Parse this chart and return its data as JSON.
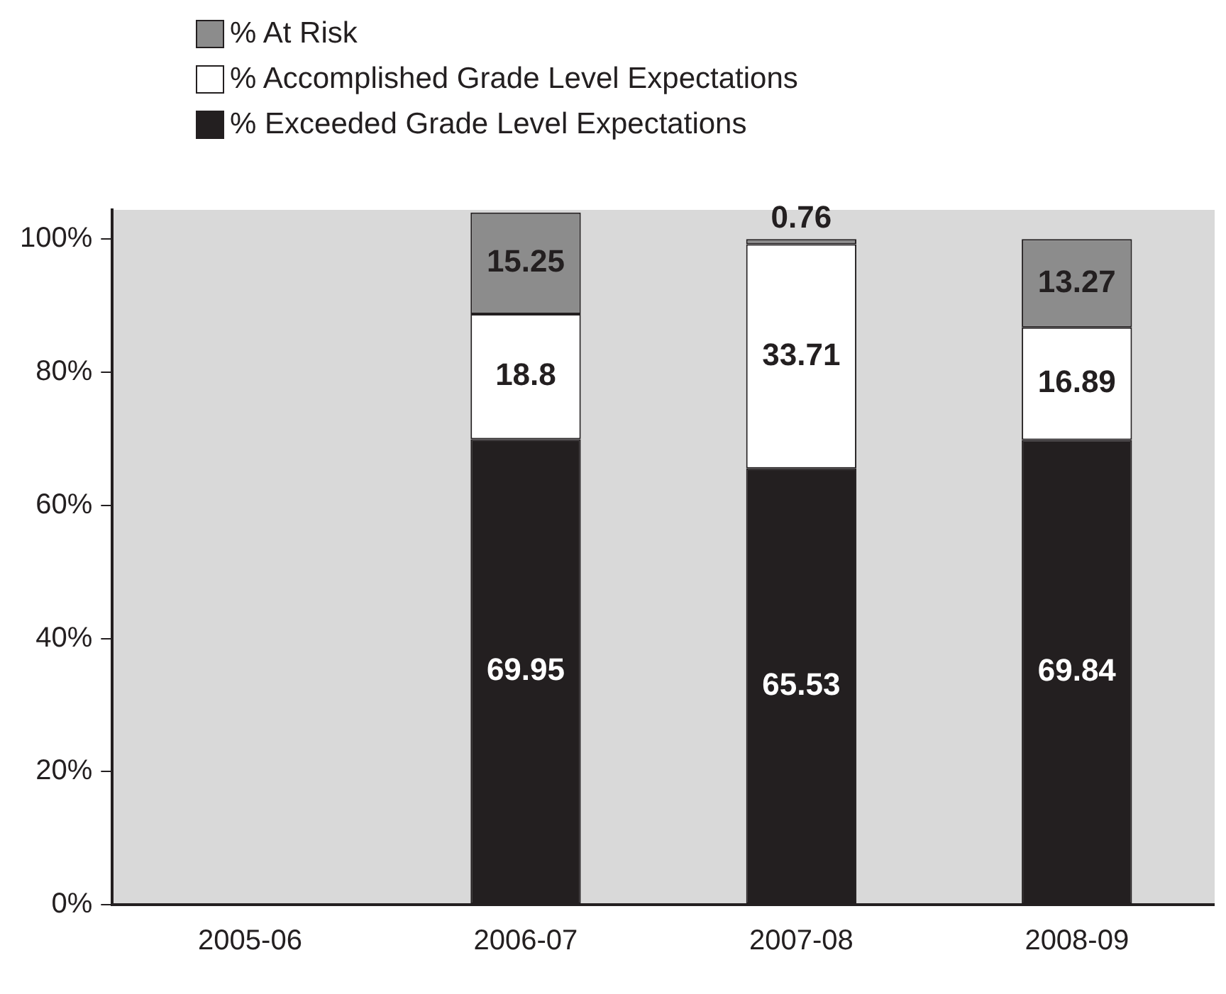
{
  "chart_data": {
    "type": "bar",
    "stacked": true,
    "categories": [
      "2005-06",
      "2006-07",
      "2007-08",
      "2008-09"
    ],
    "series": [
      {
        "name": "% Exceeded Grade Level Expectations",
        "color": "#231f20",
        "values": [
          null,
          69.95,
          65.53,
          69.84
        ]
      },
      {
        "name": "% Accomplished Grade Level Expectations",
        "color": "#ffffff",
        "values": [
          null,
          18.8,
          33.71,
          16.89
        ]
      },
      {
        "name": "% At Risk",
        "color": "#8c8c8c",
        "values": [
          null,
          15.25,
          0.76,
          13.27
        ]
      }
    ],
    "ylim": [
      0,
      104.4
    ],
    "yticks": [
      {
        "value": 0,
        "label": "0%"
      },
      {
        "value": 20,
        "label": "20%"
      },
      {
        "value": 40,
        "label": "40%"
      },
      {
        "value": 60,
        "label": "60%"
      },
      {
        "value": 80,
        "label": "80%"
      },
      {
        "value": 100,
        "label": "100%"
      }
    ],
    "data_labels": true,
    "grid": false,
    "legend": "top left"
  }
}
